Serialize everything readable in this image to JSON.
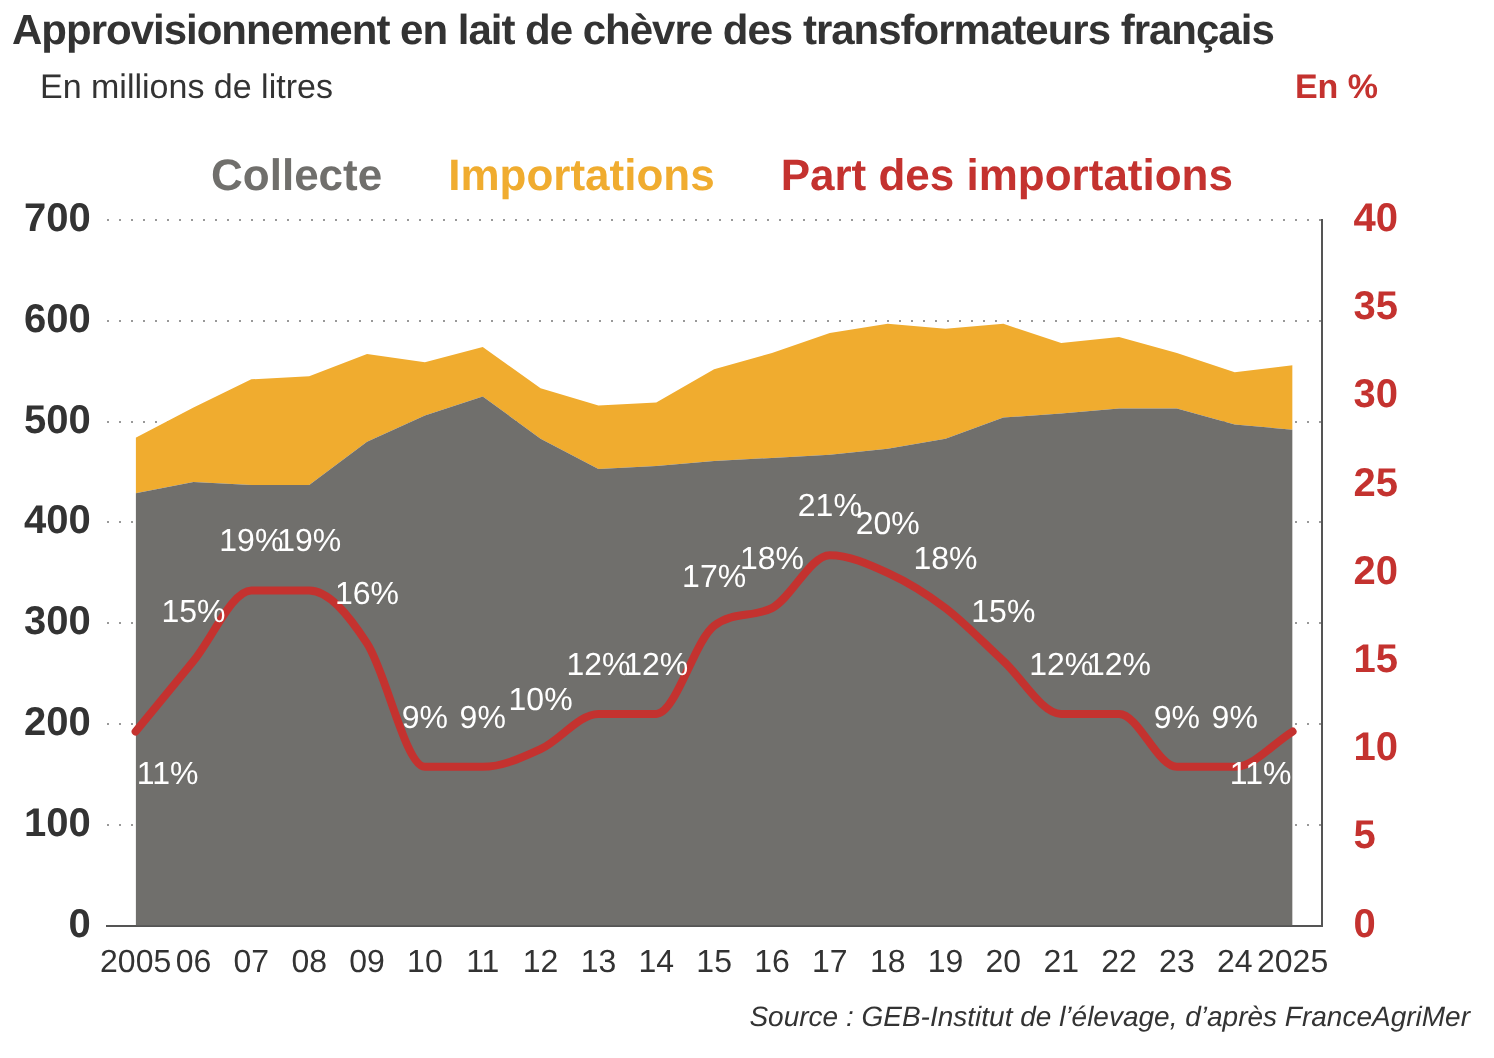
{
  "chart_data": {
    "type": "area",
    "title": "Approvisionnement en lait de chèvre des transformateurs français",
    "ylabel": "En millions de litres",
    "y2label": "En %",
    "categories": [
      "2005",
      "06",
      "07",
      "08",
      "09",
      "10",
      "11",
      "12",
      "13",
      "14",
      "15",
      "16",
      "17",
      "18",
      "19",
      "20",
      "21",
      "22",
      "23",
      "24",
      "2025"
    ],
    "stacked": true,
    "series": [
      {
        "name": "Collecte",
        "color": "#706f6c",
        "values": [
          429,
          440,
          437,
          437,
          480,
          506,
          525,
          483,
          453,
          456,
          461,
          464,
          467,
          473,
          483,
          504,
          508,
          513,
          513,
          497,
          492
        ]
      },
      {
        "name": "Importations",
        "color": "#f0ac2f",
        "values": [
          55,
          74,
          105,
          108,
          87,
          53,
          49,
          50,
          63,
          63,
          91,
          104,
          121,
          124,
          109,
          93,
          70,
          71,
          55,
          52,
          64
        ]
      },
      {
        "name": "Part des importations",
        "type": "line",
        "axis": "y2",
        "color": "#c4322f",
        "values": [
          11,
          15,
          19,
          19,
          16,
          9,
          9,
          10,
          12,
          12,
          17,
          18,
          21,
          20,
          18,
          15,
          12,
          12,
          9,
          9,
          11
        ],
        "value_labels": [
          "11%",
          "15%",
          "19%",
          "19%",
          "16%",
          "9%",
          "9%",
          "10%",
          "12%",
          "12%",
          "17%",
          "18%",
          "21%",
          "20%",
          "18%",
          "15%",
          "12%",
          "12%",
          "9%",
          "9%",
          "11%"
        ]
      }
    ],
    "ylim": [
      0,
      700
    ],
    "yticks": [
      0,
      100,
      200,
      300,
      400,
      500,
      600,
      700
    ],
    "y2lim": [
      0,
      40
    ],
    "y2ticks": [
      0,
      5,
      10,
      15,
      20,
      25,
      30,
      35,
      40
    ],
    "grid": "y",
    "legend": "top",
    "annotations": [
      "Source : GEB-Institut de l’élevage, d’après FranceAgriMer"
    ]
  }
}
